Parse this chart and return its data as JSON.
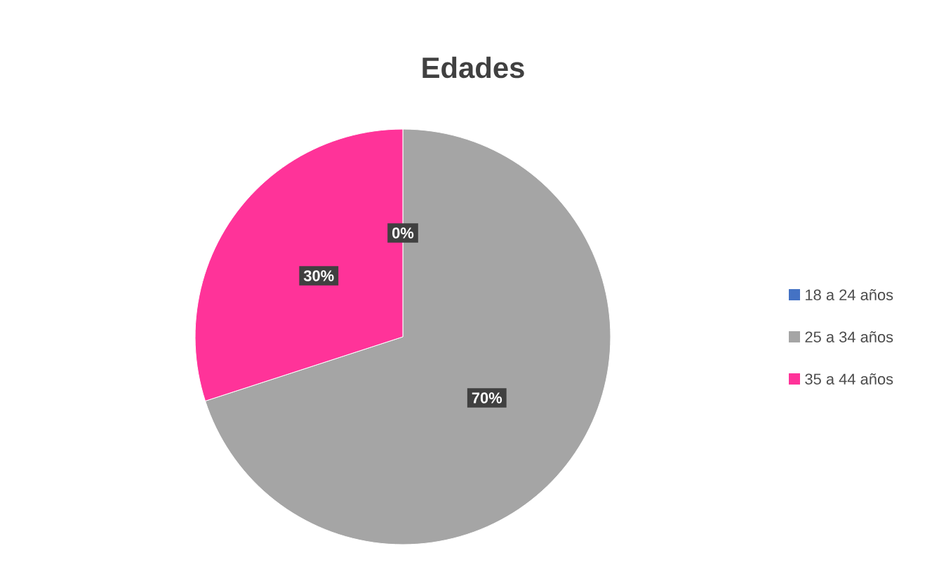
{
  "chart_data": {
    "type": "pie",
    "title": "Edades",
    "categories": [
      "18 a 24 años",
      "25 a 34 años",
      "35 a 44 años"
    ],
    "values": [
      0,
      70,
      30
    ],
    "colors": [
      "#4472c4",
      "#a5a5a5",
      "#ff3399"
    ],
    "value_labels": [
      "0%",
      "70%",
      "30%"
    ],
    "legend": "right"
  }
}
